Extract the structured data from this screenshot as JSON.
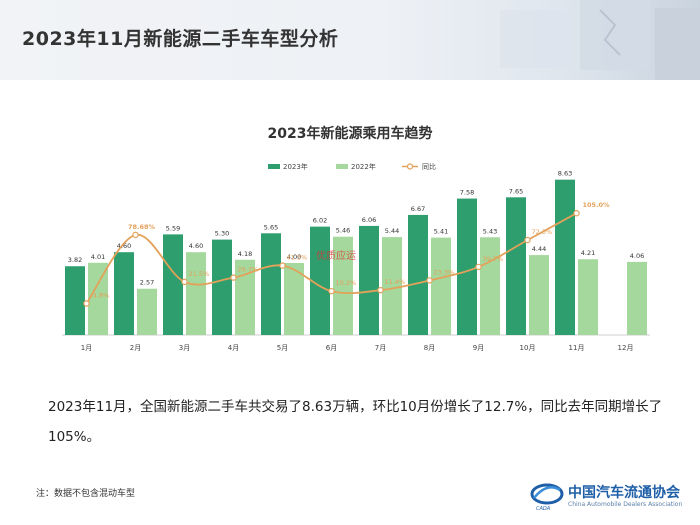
{
  "header": {
    "title": "2023年11月新能源二手车车型分析"
  },
  "colors": {
    "series_2023": "#2e9e6f",
    "series_2022": "#a5d89c",
    "yoy": "#e3a15a"
  },
  "chart_data": {
    "type": "bar",
    "title": "2023年新能源乘用车趋势",
    "categories": [
      "1月",
      "2月",
      "3月",
      "4月",
      "5月",
      "6月",
      "7月",
      "8月",
      "9月",
      "10月",
      "11月",
      "12月"
    ],
    "series": [
      {
        "name": "2023年",
        "type": "bar",
        "values": [
          3.82,
          4.6,
          5.59,
          5.3,
          5.65,
          6.02,
          6.06,
          6.67,
          7.58,
          7.65,
          8.63,
          null
        ],
        "labels": [
          "3.82",
          "4.60",
          "5.59",
          "5.30",
          "5.65",
          "6.02",
          "6.06",
          "6.67",
          "7.58",
          "7.65",
          "8.63",
          ""
        ]
      },
      {
        "name": "2022年",
        "type": "bar",
        "values": [
          4.01,
          2.57,
          4.6,
          4.18,
          4.0,
          5.46,
          5.44,
          5.41,
          5.43,
          4.44,
          4.21,
          4.06
        ],
        "labels": [
          "4.01",
          "2.57",
          "4.60",
          "4.18",
          "4.00",
          "5.46",
          "5.44",
          "5.41",
          "5.43",
          "4.44",
          "4.21",
          "4.06"
        ]
      },
      {
        "name": "同比",
        "type": "line",
        "values": [
          -4.8,
          78.68,
          21.5,
          26.7,
          41.3,
          10.2,
          11.4,
          23.3,
          39.7,
          72.3,
          105.0,
          null
        ],
        "labels": [
          "-4.8%",
          "78.68%",
          "21.5%",
          "26.7%",
          "41.3%",
          "10.2%",
          "11.4%",
          "23.3%",
          "39.7%",
          "72.3%",
          "105.0%",
          ""
        ]
      }
    ],
    "legend_position": "top-center",
    "grid": false
  },
  "summary": {
    "text": "2023年11月，全国新能源二手车共交易了8.63万辆，环比10月份增长了12.7%，同比去年同期增长了105%。"
  },
  "note": {
    "text": "注：数据不包含混动车型"
  },
  "watermark": {
    "text": "优质应运"
  },
  "logo": {
    "name": "中国汽车流通协会",
    "english": "China Automobile Dealers Association",
    "mark": "CADA"
  }
}
